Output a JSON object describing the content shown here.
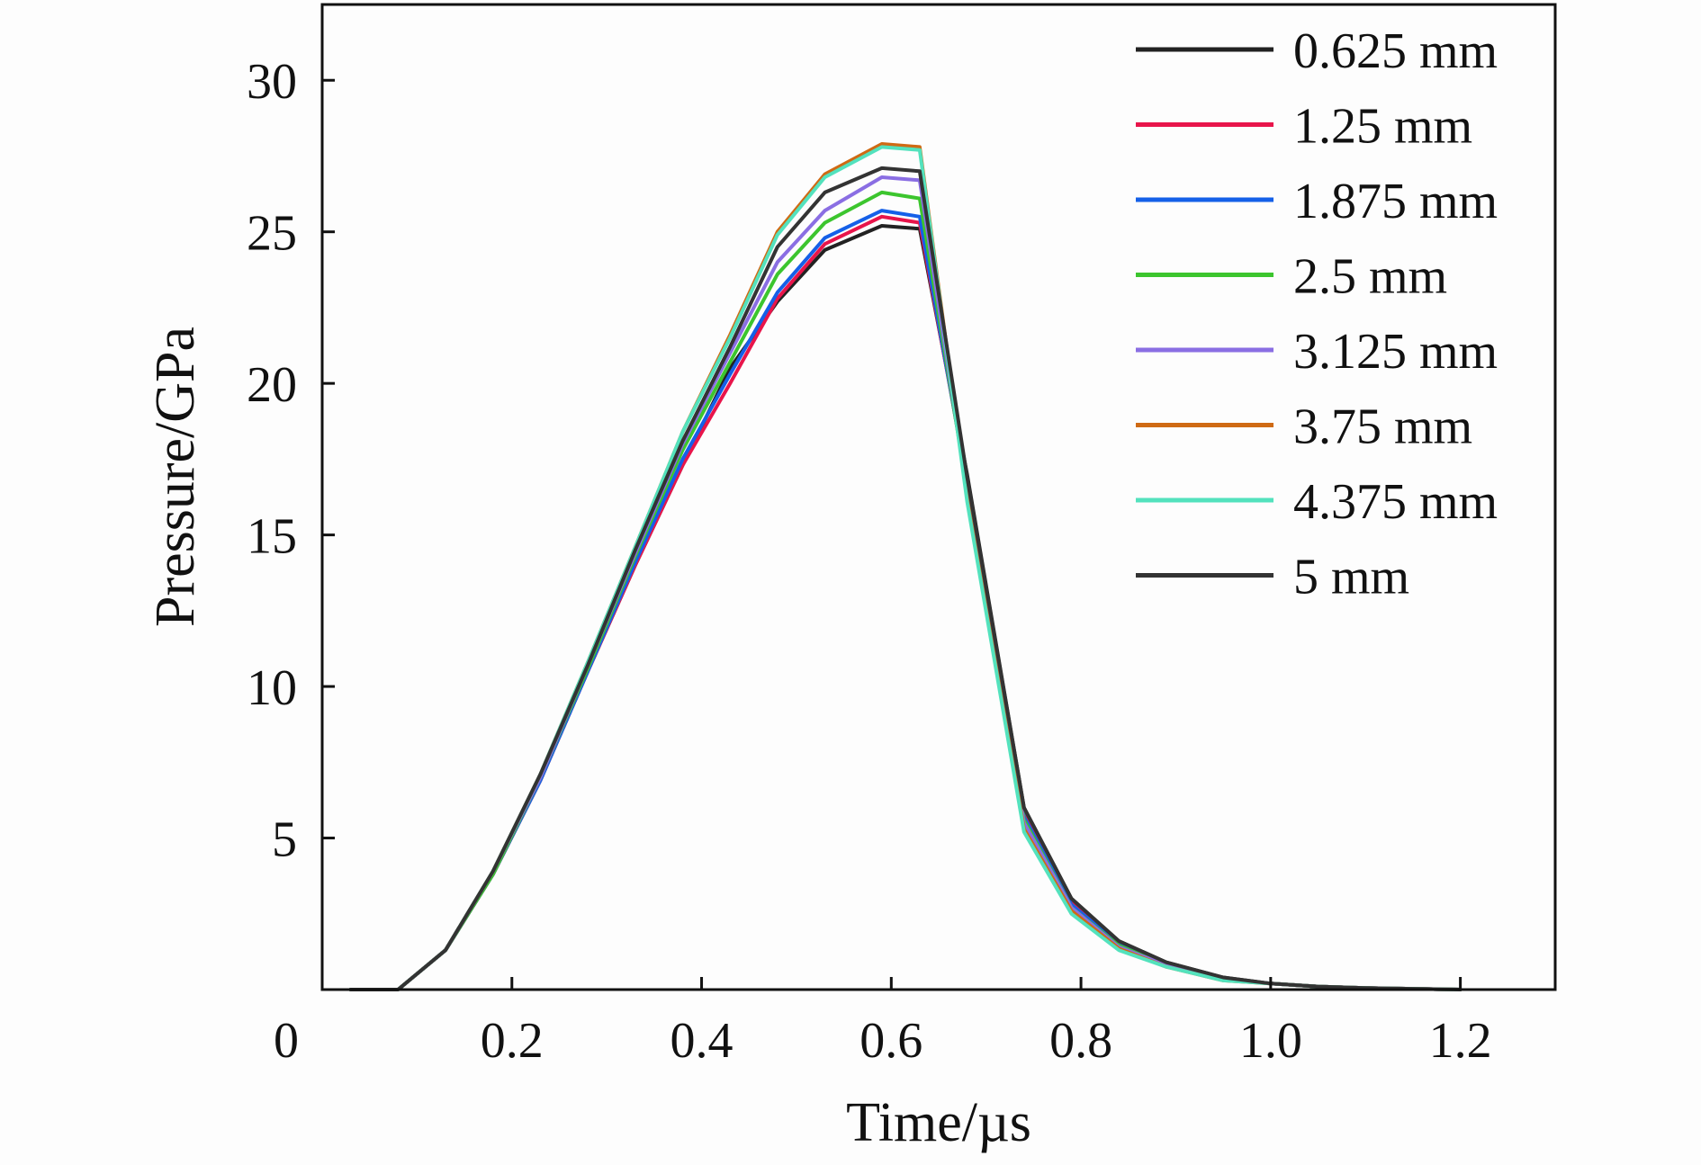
{
  "chart_data": {
    "type": "line",
    "title": "",
    "xlabel": "Time/µs",
    "ylabel": "Pressure/GPa",
    "xlim": [
      0,
      1.3
    ],
    "ylim": [
      0,
      32.5
    ],
    "x_origin_label": "0",
    "xticks": [
      0.2,
      0.4,
      0.6,
      0.8,
      1.0,
      1.2
    ],
    "xtick_labels": [
      "0.2",
      "0.4",
      "0.6",
      "0.8",
      "1.0",
      "1.2"
    ],
    "yticks": [
      5,
      10,
      15,
      20,
      25,
      30
    ],
    "ytick_labels": [
      "5",
      "10",
      "15",
      "20",
      "25",
      "30"
    ],
    "grid": false,
    "legend_position": "top-right",
    "x": [
      0.03,
      0.08,
      0.13,
      0.18,
      0.23,
      0.28,
      0.33,
      0.38,
      0.43,
      0.48,
      0.53,
      0.59,
      0.63,
      0.68,
      0.74,
      0.79,
      0.84,
      0.89,
      0.95,
      1.0,
      1.05,
      1.1,
      1.2
    ],
    "series": [
      {
        "name": "0.625 mm",
        "color": "#222222",
        "values": [
          0,
          0,
          1.3,
          3.8,
          6.9,
          10.5,
          14.0,
          17.3,
          20.5,
          22.7,
          24.4,
          25.2,
          25.1,
          17.0,
          6.0,
          3.0,
          1.6,
          0.9,
          0.4,
          0.2,
          0.1,
          0.05,
          0
        ]
      },
      {
        "name": "1.25 mm",
        "color": "#e8154b",
        "values": [
          0,
          0,
          1.3,
          3.8,
          6.9,
          10.5,
          14.0,
          17.3,
          20.0,
          22.8,
          24.6,
          25.5,
          25.3,
          16.8,
          5.8,
          2.9,
          1.5,
          0.85,
          0.35,
          0.2,
          0.1,
          0.05,
          0
        ]
      },
      {
        "name": "1.875 mm",
        "color": "#1560e8",
        "values": [
          0,
          0,
          1.3,
          3.8,
          6.9,
          10.5,
          14.1,
          17.5,
          20.3,
          23.0,
          24.8,
          25.7,
          25.5,
          16.7,
          5.7,
          2.8,
          1.5,
          0.85,
          0.35,
          0.2,
          0.1,
          0.05,
          0
        ]
      },
      {
        "name": "2.5 mm",
        "color": "#3cc52e",
        "values": [
          0,
          0,
          1.3,
          3.8,
          7.0,
          10.6,
          14.3,
          17.8,
          20.7,
          23.6,
          25.3,
          26.3,
          26.1,
          16.5,
          5.6,
          2.7,
          1.45,
          0.8,
          0.35,
          0.2,
          0.1,
          0.05,
          0
        ]
      },
      {
        "name": "3.125 mm",
        "color": "#8a6ee3",
        "values": [
          0,
          0,
          1.3,
          3.9,
          7.0,
          10.7,
          14.4,
          18.0,
          21.0,
          24.0,
          25.7,
          26.8,
          26.7,
          16.4,
          5.5,
          2.7,
          1.4,
          0.8,
          0.35,
          0.2,
          0.1,
          0.05,
          0
        ]
      },
      {
        "name": "3.75 mm",
        "color": "#cf6a14",
        "values": [
          0,
          0,
          1.3,
          3.9,
          7.1,
          10.8,
          14.6,
          18.4,
          21.6,
          25.0,
          26.9,
          27.9,
          27.8,
          16.2,
          5.3,
          2.6,
          1.35,
          0.75,
          0.3,
          0.2,
          0.1,
          0.05,
          0
        ]
      },
      {
        "name": "4.375 mm",
        "color": "#53e2bd",
        "values": [
          0,
          0,
          1.3,
          3.9,
          7.1,
          10.8,
          14.6,
          18.4,
          21.5,
          24.9,
          26.8,
          27.8,
          27.7,
          16.1,
          5.2,
          2.5,
          1.3,
          0.75,
          0.3,
          0.2,
          0.1,
          0.05,
          0
        ]
      },
      {
        "name": "5 mm",
        "color": "#333333",
        "values": [
          0,
          0,
          1.3,
          3.9,
          7.1,
          10.7,
          14.5,
          18.1,
          21.2,
          24.5,
          26.3,
          27.1,
          27.0,
          16.9,
          6.0,
          3.0,
          1.6,
          0.9,
          0.4,
          0.2,
          0.1,
          0.05,
          0
        ]
      }
    ]
  }
}
